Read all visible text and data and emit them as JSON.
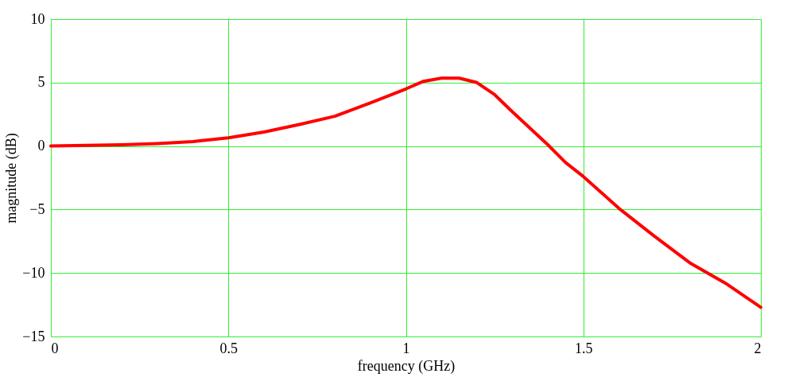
{
  "chart_data": {
    "type": "line",
    "xlabel": "frequency (GHz)",
    "ylabel": "magnitude (dB)",
    "x": [
      0,
      0.1,
      0.2,
      0.3,
      0.4,
      0.5,
      0.6,
      0.7,
      0.8,
      0.9,
      1.0,
      1.05,
      1.1,
      1.15,
      1.2,
      1.25,
      1.3,
      1.35,
      1.4,
      1.45,
      1.5,
      1.6,
      1.7,
      1.8,
      1.9,
      2.0
    ],
    "series": [
      {
        "color": "#ff0000",
        "values": [
          0.0,
          0.05,
          0.1,
          0.2,
          0.35,
          0.65,
          1.1,
          1.7,
          2.35,
          3.4,
          4.5,
          5.1,
          5.35,
          5.35,
          5.0,
          4.05,
          2.7,
          1.4,
          0.1,
          -1.3,
          -2.4,
          -4.9,
          -7.1,
          -9.2,
          -10.8,
          -12.7
        ]
      }
    ],
    "xlim": [
      0,
      2
    ],
    "xticks": [
      0,
      0.5,
      1,
      1.5,
      2
    ],
    "ylim": [
      -15,
      10
    ],
    "yticks": [
      {
        "value": -15,
        "label": "−15"
      },
      {
        "value": -10,
        "label": "−10"
      },
      {
        "value": -5,
        "label": "−5"
      },
      0,
      5,
      10
    ],
    "grid": true,
    "line_style": "solid",
    "marker": "none"
  }
}
